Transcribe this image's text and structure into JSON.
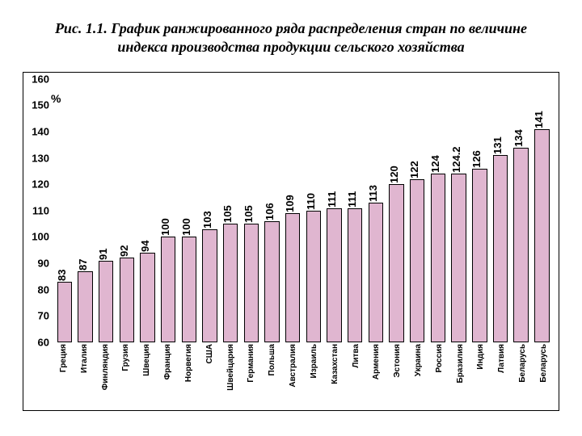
{
  "title": "Рис. 1.1. График ранжированного ряда распределения стран по величине индекса производства продукции сельского хозяйства",
  "chart": {
    "type": "bar",
    "y_unit_label": "%",
    "ymin": 60,
    "ymax": 160,
    "ytick_step": 10,
    "bar_color": "#e0b6d0",
    "border_color": "#000000",
    "background_color": "#ffffff",
    "title_fontsize": 18,
    "label_fontsize": 13,
    "xlabel_fontsize": 10,
    "series": [
      {
        "label": "Греция",
        "value": 83
      },
      {
        "label": "Италия",
        "value": 87
      },
      {
        "label": "Финляндия",
        "value": 91
      },
      {
        "label": "Грузия",
        "value": 92
      },
      {
        "label": "Швеция",
        "value": 94
      },
      {
        "label": "Франция",
        "value": 100
      },
      {
        "label": "Норвегия",
        "value": 100
      },
      {
        "label": "США",
        "value": 103
      },
      {
        "label": "Швейцария",
        "value": 105
      },
      {
        "label": "Германия",
        "value": 105
      },
      {
        "label": "Польша",
        "value": 106
      },
      {
        "label": "Австралия",
        "value": 109
      },
      {
        "label": "Израиль",
        "value": 110
      },
      {
        "label": "Казахстан",
        "value": 111
      },
      {
        "label": "Литва",
        "value": 111
      },
      {
        "label": "Армения",
        "value": 113
      },
      {
        "label": "Эстония",
        "value": 120
      },
      {
        "label": "Украина",
        "value": 122
      },
      {
        "label": "Россия",
        "value": 124
      },
      {
        "label": "Бразилия",
        "value": 124.2
      },
      {
        "label": "Индия",
        "value": 126
      },
      {
        "label": "Латвия",
        "value": 131
      },
      {
        "label": "Беларусь",
        "value": 134
      },
      {
        "label": "Беларусь",
        "value": 141
      }
    ]
  }
}
